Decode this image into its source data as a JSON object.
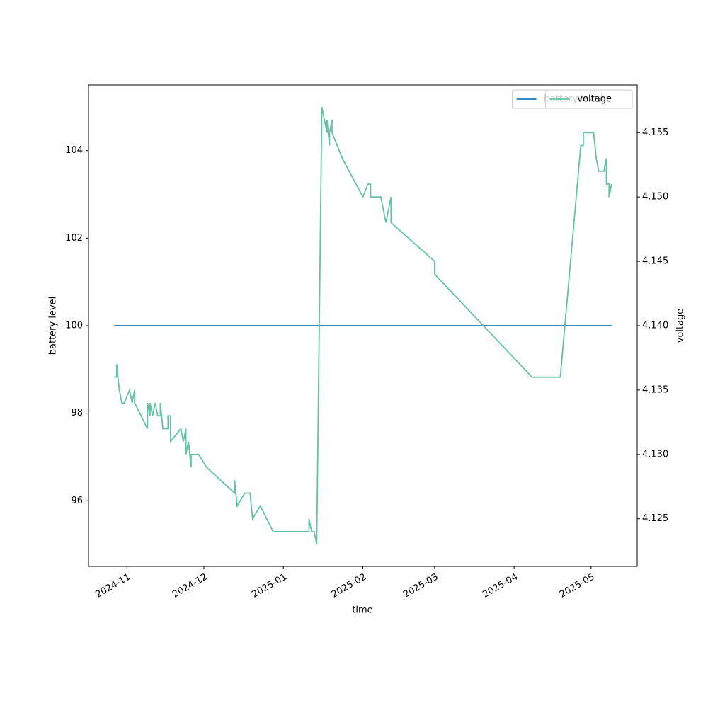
{
  "chart_data": {
    "type": "line",
    "xlabel": "time",
    "ylabel": "battery level",
    "y2label": "voltage",
    "xlim": [
      "2024-10-17",
      "2025-05-19"
    ],
    "xticks": [
      {
        "value": "2024-11-01",
        "label": "2024-11"
      },
      {
        "value": "2024-12-01",
        "label": "2024-12"
      },
      {
        "value": "2025-01-01",
        "label": "2025-01"
      },
      {
        "value": "2025-02-01",
        "label": "2025-02"
      },
      {
        "value": "2025-03-01",
        "label": "2025-03"
      },
      {
        "value": "2025-04-01",
        "label": "2025-04"
      },
      {
        "value": "2025-05-01",
        "label": "2025-05"
      }
    ],
    "ylim": [
      94.5,
      105.5
    ],
    "yticks": [
      96,
      98,
      100,
      102,
      104
    ],
    "y2lim": [
      4.1213,
      4.1587
    ],
    "y2ticks": [
      4.125,
      {
        "value": 4.13,
        "label": "4.130"
      },
      4.135,
      {
        "value": 4.14,
        "label": "4.140"
      },
      4.145,
      {
        "value": 4.15,
        "label": "4.150"
      },
      4.155
    ],
    "legend": "upper right",
    "series": [
      {
        "name": "battery level",
        "color": "#1f77b4",
        "axis": "y",
        "x": [
          "2024-10-27",
          "2025-05-09"
        ],
        "values": [
          100,
          100
        ]
      },
      {
        "name": "voltage",
        "color": "#66c2a5",
        "axis": "y2",
        "x": [
          "2024-10-27",
          "2024-10-28",
          "2024-10-28",
          "2024-10-29",
          "2024-10-30",
          "2024-10-31",
          "2024-11-02",
          "2024-11-03",
          "2024-11-04",
          "2024-11-04",
          "2024-11-09",
          "2024-11-09",
          "2024-11-10",
          "2024-11-10",
          "2024-11-11",
          "2024-11-12",
          "2024-11-13",
          "2024-11-14",
          "2024-11-14",
          "2024-11-15",
          "2024-11-17",
          "2024-11-17",
          "2024-11-18",
          "2024-11-18",
          "2024-11-22",
          "2024-11-23",
          "2024-11-24",
          "2024-11-24",
          "2024-11-25",
          "2024-11-26",
          "2024-11-26",
          "2024-11-29",
          "2024-12-02",
          "2024-12-13",
          "2024-12-13",
          "2024-12-14",
          "2024-12-17",
          "2024-12-19",
          "2024-12-20",
          "2024-12-23",
          "2024-12-28",
          "2025-01-11",
          "2025-01-11",
          "2025-01-12",
          "2025-01-13",
          "2025-01-14",
          "2025-01-16",
          "2025-01-18",
          "2025-01-18",
          "2025-01-19",
          "2025-01-19",
          "2025-01-20",
          "2025-01-20",
          "2025-01-24",
          "2025-02-01",
          "2025-02-03",
          "2025-02-04",
          "2025-02-04",
          "2025-02-08",
          "2025-02-10",
          "2025-02-12",
          "2025-02-12",
          "2025-03-01",
          "2025-03-01",
          "2025-04-08",
          "2025-04-19",
          "2025-04-27",
          "2025-04-28",
          "2025-04-28",
          "2025-05-02",
          "2025-05-03",
          "2025-05-04",
          "2025-05-06",
          "2025-05-07",
          "2025-05-07",
          "2025-05-08",
          "2025-05-08",
          "2025-05-09"
        ],
        "values": [
          4.136,
          4.136,
          4.137,
          4.135,
          4.134,
          4.134,
          4.135,
          4.134,
          4.135,
          4.134,
          4.132,
          4.134,
          4.133,
          4.134,
          4.133,
          4.134,
          4.133,
          4.133,
          4.134,
          4.132,
          4.132,
          4.133,
          4.133,
          4.131,
          4.132,
          4.131,
          4.132,
          4.13,
          4.131,
          4.129,
          4.13,
          4.13,
          4.129,
          4.127,
          4.128,
          4.126,
          4.127,
          4.127,
          4.125,
          4.126,
          4.124,
          4.124,
          4.125,
          4.124,
          4.124,
          4.123,
          4.157,
          4.155,
          4.156,
          4.154,
          4.155,
          4.156,
          4.155,
          4.153,
          4.15,
          4.151,
          4.151,
          4.15,
          4.15,
          4.148,
          4.15,
          4.148,
          4.145,
          4.144,
          4.136,
          4.136,
          4.154,
          4.154,
          4.155,
          4.155,
          4.153,
          4.152,
          4.152,
          4.153,
          4.151,
          4.151,
          4.15,
          4.151
        ]
      }
    ]
  }
}
